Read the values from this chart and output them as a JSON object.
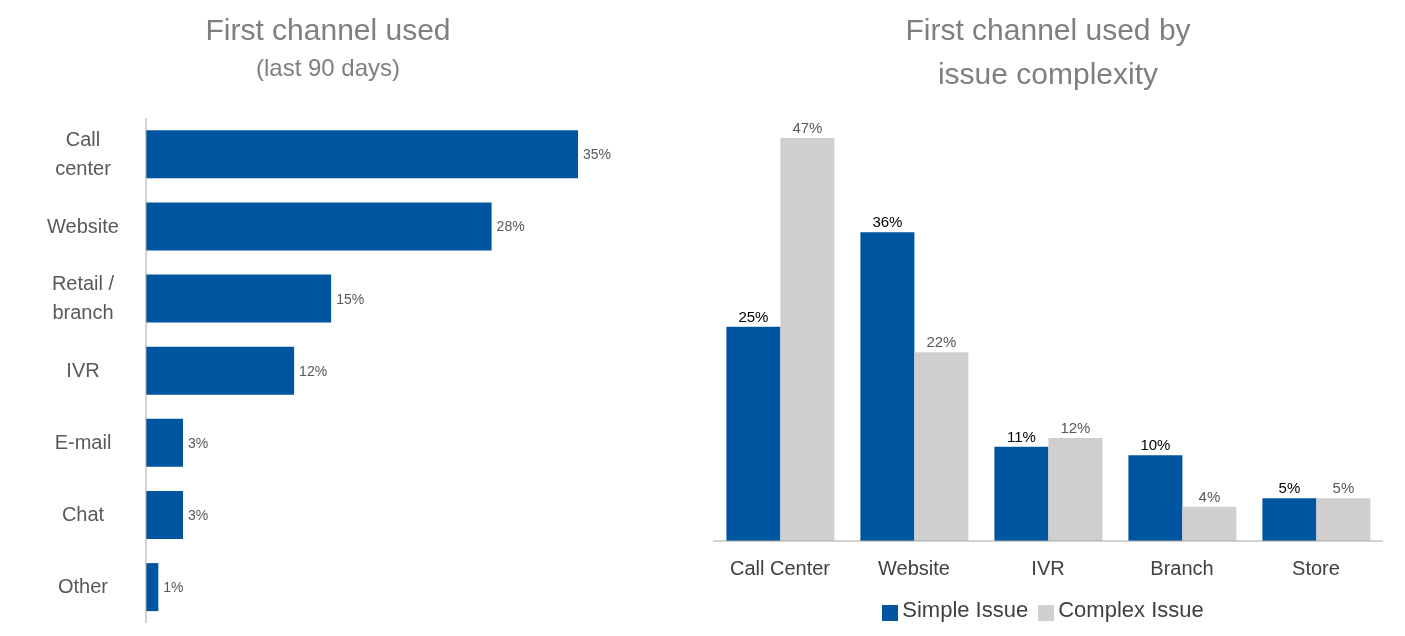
{
  "chart_data": [
    {
      "type": "bar",
      "title": "First channel used",
      "subtitle": "(last 90 days)",
      "orientation": "horizontal",
      "categories": [
        "Call center",
        "Website",
        "Retail / branch",
        "IVR",
        "E-mail",
        "Chat",
        "Other"
      ],
      "series": [
        {
          "color": "#0055a0",
          "values": [
            35,
            28,
            15,
            12,
            3,
            3,
            1
          ],
          "value_labels": [
            "35%",
            "28%",
            "15%",
            "12%",
            "3%",
            "3%",
            "1%"
          ]
        }
      ],
      "grid": false,
      "legend": false
    },
    {
      "type": "bar",
      "title": "First channel used by issue complexity",
      "categories": [
        "Call Center",
        "Website",
        "IVR",
        "Branch",
        "Store"
      ],
      "series": [
        {
          "name": "Simple Issue",
          "color": "#0055a0",
          "values": [
            25,
            36,
            11,
            10,
            5
          ],
          "value_labels": [
            "25%",
            "36%",
            "11%",
            "10%",
            "5%"
          ]
        },
        {
          "name": "Complex Issue",
          "color": "#d0cfcd",
          "values": [
            47,
            22,
            12,
            4,
            5
          ],
          "value_labels": [
            "47%",
            "22%",
            "12%",
            "4%",
            "5%"
          ]
        }
      ],
      "grid": false,
      "legend": "bottom"
    }
  ]
}
